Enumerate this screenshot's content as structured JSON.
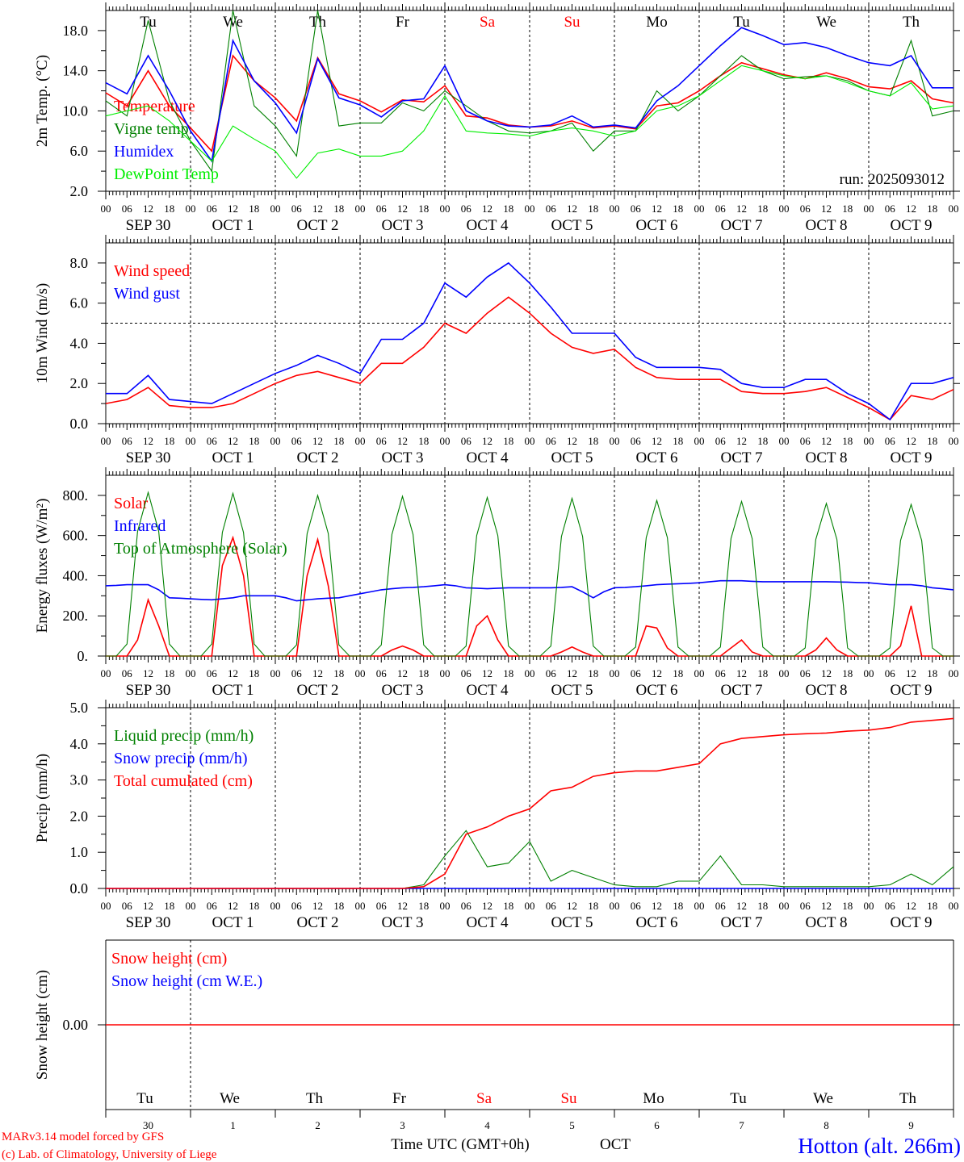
{
  "days": [
    "Tu",
    "We",
    "Th",
    "Fr",
    "Sa",
    "Su",
    "Mo",
    "Tu",
    "We",
    "Th"
  ],
  "weekend_days": [
    "Sa",
    "Su"
  ],
  "dates": [
    "SEP 30",
    "OCT  1",
    "OCT  2",
    "OCT  3",
    "OCT  4",
    "OCT  5",
    "OCT  6",
    "OCT  7",
    "OCT  8",
    "OCT  9"
  ],
  "day_numbers": [
    "30",
    "1",
    "2",
    "3",
    "4",
    "5",
    "6",
    "7",
    "8",
    "9"
  ],
  "hour_labels": [
    "00",
    "06",
    "12",
    "18"
  ],
  "run_label": "run: 2025093012",
  "footer": {
    "time_label": "Time UTC (GMT+0h)",
    "month_label": "OCT",
    "credit_1": "MARv3.14 model forced by GFS",
    "credit_2": "(c) Lab. of Climatology, University of Liege",
    "station": "Hotton (alt. 266m)"
  },
  "colors": {
    "red": "#ff0000",
    "blue": "#0000ff",
    "green": "#008000",
    "lightgreen": "#00ee00",
    "weekend": "#ff0000"
  },
  "chart_data": [
    {
      "type": "line",
      "ylabel": "2m Temp. (°C)",
      "ylim": [
        2,
        20
      ],
      "yticks": [
        "2.0",
        "6.0",
        "10.0",
        "14.0",
        "18.0"
      ],
      "ytick_values": [
        2,
        6,
        10,
        14,
        18
      ],
      "x_start": "2025-09-30 00 UTC",
      "step_hours": 6,
      "series": [
        {
          "name": "Temperature",
          "color": "#ff0000",
          "values": [
            11.8,
            10.5,
            14.0,
            10.5,
            8.3,
            6.0,
            15.5,
            13.0,
            11.3,
            9.0,
            15.3,
            11.7,
            11.0,
            9.9,
            11.1,
            10.9,
            12.5,
            9.5,
            9.3,
            8.6,
            8.4,
            8.5,
            9.0,
            8.3,
            8.5,
            8.2,
            10.5,
            10.8,
            12.0,
            13.5,
            14.8,
            14.2,
            13.6,
            13.2,
            13.8,
            13.2,
            12.4,
            12.2,
            13.0,
            11.2,
            10.8
          ]
        },
        {
          "name": "Vigne temp",
          "color": "#008000",
          "values": [
            11.0,
            9.5,
            19.0,
            11.0,
            7.0,
            4.0,
            20.0,
            10.5,
            8.5,
            5.5,
            20.0,
            8.5,
            8.8,
            8.8,
            10.8,
            10.0,
            12.0,
            10.5,
            9.0,
            8.0,
            7.8,
            8.0,
            8.8,
            6.0,
            8.0,
            8.0,
            12.0,
            10.0,
            11.5,
            13.5,
            15.5,
            14.0,
            13.2,
            13.4,
            13.5,
            13.0,
            12.0,
            11.5,
            17.0,
            9.5,
            10.0
          ]
        },
        {
          "name": "Humidex",
          "color": "#0000ff",
          "values": [
            12.8,
            11.7,
            15.5,
            12.0,
            8.0,
            5.0,
            17.0,
            13.0,
            10.8,
            7.8,
            15.2,
            11.3,
            10.6,
            9.4,
            11.0,
            11.2,
            14.5,
            10.0,
            9.0,
            8.5,
            8.4,
            8.6,
            9.5,
            8.4,
            8.6,
            8.3,
            11.0,
            12.5,
            14.5,
            16.5,
            18.3,
            17.5,
            16.6,
            16.8,
            16.3,
            15.5,
            14.8,
            14.5,
            15.5,
            12.3,
            12.3
          ]
        },
        {
          "name": "DewPoint Temp",
          "color": "#00ee00",
          "values": [
            9.5,
            10.0,
            10.5,
            9.0,
            7.0,
            5.0,
            8.5,
            7.2,
            6.0,
            3.3,
            5.8,
            6.2,
            5.5,
            5.5,
            6.0,
            8.0,
            11.5,
            8.0,
            7.8,
            7.7,
            7.5,
            8.0,
            8.3,
            8.0,
            7.5,
            8.0,
            10.0,
            10.5,
            11.5,
            13.0,
            14.5,
            14.0,
            13.5,
            13.2,
            13.5,
            12.8,
            12.0,
            11.5,
            12.8,
            10.2,
            10.5
          ]
        }
      ]
    },
    {
      "type": "line",
      "ylabel": "10m Wind (m/s)",
      "ylim": [
        0,
        9
      ],
      "yticks": [
        "0.0",
        "2.0",
        "4.0",
        "6.0",
        "8.0"
      ],
      "ytick_values": [
        0,
        2,
        4,
        6,
        8
      ],
      "reference_line": 5,
      "step_hours": 6,
      "series": [
        {
          "name": "Wind speed",
          "color": "#ff0000",
          "values": [
            1.0,
            1.2,
            1.8,
            0.9,
            0.8,
            0.8,
            1.0,
            1.5,
            2.0,
            2.4,
            2.6,
            2.3,
            2.0,
            3.0,
            3.0,
            3.8,
            5.0,
            4.5,
            5.5,
            6.3,
            5.5,
            4.5,
            3.8,
            3.5,
            3.7,
            2.8,
            2.3,
            2.2,
            2.2,
            2.2,
            1.6,
            1.5,
            1.5,
            1.6,
            1.8,
            1.3,
            0.8,
            0.2,
            1.4,
            1.2,
            1.7
          ]
        },
        {
          "name": "Wind gust",
          "color": "#0000ff",
          "values": [
            1.5,
            1.5,
            2.4,
            1.2,
            1.1,
            1.0,
            1.5,
            2.0,
            2.5,
            2.9,
            3.4,
            3.0,
            2.5,
            4.2,
            4.2,
            5.0,
            7.0,
            6.3,
            7.3,
            8.0,
            7.0,
            5.8,
            4.5,
            4.5,
            4.5,
            3.3,
            2.8,
            2.8,
            2.8,
            2.7,
            2.0,
            1.8,
            1.8,
            2.2,
            2.2,
            1.5,
            1.0,
            0.2,
            2.0,
            2.0,
            2.3
          ]
        }
      ]
    },
    {
      "type": "line",
      "ylabel": "Energy fluxes (W/m²)",
      "ylim": [
        0,
        900
      ],
      "yticks": [
        "0.",
        "200.",
        "400.",
        "600.",
        "800."
      ],
      "ytick_values": [
        0,
        200,
        400,
        600,
        800
      ],
      "step_hours": 3,
      "series": [
        {
          "name": "Solar",
          "color": "#ff0000",
          "values": [
            0,
            0,
            0,
            80,
            280,
            150,
            0,
            0,
            0,
            0,
            0,
            450,
            590,
            400,
            0,
            0,
            0,
            0,
            0,
            400,
            580,
            350,
            0,
            0,
            0,
            0,
            0,
            30,
            50,
            30,
            0,
            0,
            0,
            0,
            0,
            150,
            200,
            80,
            0,
            0,
            0,
            0,
            0,
            20,
            45,
            20,
            0,
            0,
            0,
            0,
            0,
            150,
            140,
            40,
            0,
            0,
            0,
            0,
            0,
            40,
            80,
            20,
            0,
            0,
            0,
            0,
            0,
            30,
            90,
            30,
            0,
            0,
            0,
            0,
            0,
            50,
            250,
            0,
            0,
            0,
            0
          ]
        },
        {
          "name": "Infrared",
          "color": "#0000ff",
          "values": [
            350,
            352,
            355,
            355,
            355,
            330,
            290,
            288,
            285,
            282,
            280,
            285,
            290,
            300,
            300,
            300,
            300,
            290,
            275,
            280,
            285,
            288,
            290,
            300,
            310,
            320,
            330,
            335,
            340,
            342,
            345,
            350,
            355,
            350,
            340,
            338,
            335,
            338,
            340,
            340,
            340,
            340,
            340,
            342,
            345,
            320,
            290,
            320,
            340,
            342,
            345,
            350,
            355,
            358,
            360,
            362,
            365,
            370,
            375,
            375,
            375,
            372,
            370,
            370,
            370,
            370,
            370,
            370,
            370,
            369,
            368,
            366,
            365,
            360,
            355,
            355,
            355,
            350,
            340,
            335,
            330
          ]
        },
        {
          "name": "Top of Atmosphere (Solar)",
          "color": "#008000",
          "values": [
            0,
            0,
            60,
            620,
            815,
            620,
            60,
            0,
            0,
            0,
            60,
            615,
            810,
            615,
            60,
            0,
            0,
            0,
            55,
            610,
            800,
            610,
            55,
            0,
            0,
            0,
            55,
            605,
            795,
            605,
            55,
            0,
            0,
            0,
            50,
            600,
            790,
            600,
            50,
            0,
            0,
            0,
            50,
            595,
            785,
            595,
            50,
            0,
            0,
            0,
            45,
            590,
            775,
            590,
            45,
            0,
            0,
            0,
            45,
            585,
            770,
            585,
            45,
            0,
            0,
            0,
            40,
            580,
            760,
            580,
            40,
            0,
            0,
            0,
            40,
            575,
            755,
            575,
            40,
            0,
            0
          ]
        }
      ]
    },
    {
      "type": "line",
      "ylabel": "Precip (mm/h)",
      "ylim": [
        0,
        5
      ],
      "yticks": [
        "0.0",
        "1.0",
        "2.0",
        "3.0",
        "4.0",
        "5.0"
      ],
      "ytick_values": [
        0,
        1,
        2,
        3,
        4,
        5
      ],
      "step_hours": 6,
      "series": [
        {
          "name": "Liquid precip (mm/h)",
          "color": "#008000",
          "values": [
            0,
            0,
            0,
            0,
            0,
            0,
            0,
            0,
            0,
            0,
            0,
            0,
            0,
            0,
            0,
            0.1,
            0.9,
            1.6,
            0.6,
            0.7,
            1.3,
            0.2,
            0.5,
            0.3,
            0.1,
            0.05,
            0.05,
            0.2,
            0.2,
            0.9,
            0.1,
            0.1,
            0.05,
            0.05,
            0.05,
            0.05,
            0.05,
            0.1,
            0.4,
            0.1,
            0.6
          ]
        },
        {
          "name": "Snow precip (mm/h)",
          "color": "#0000ff",
          "values": [
            0,
            0,
            0,
            0,
            0,
            0,
            0,
            0,
            0,
            0,
            0,
            0,
            0,
            0,
            0,
            0,
            0,
            0,
            0,
            0,
            0,
            0,
            0,
            0,
            0,
            0,
            0,
            0,
            0,
            0,
            0,
            0,
            0,
            0,
            0,
            0,
            0,
            0,
            0,
            0,
            0
          ]
        },
        {
          "name": "Total cumulated (cm)",
          "color": "#ff0000",
          "values": [
            0,
            0,
            0,
            0,
            0,
            0,
            0,
            0,
            0,
            0,
            0,
            0,
            0,
            0,
            0,
            0.05,
            0.4,
            1.5,
            1.7,
            2.0,
            2.2,
            2.7,
            2.8,
            3.1,
            3.2,
            3.25,
            3.25,
            3.35,
            3.45,
            4.0,
            4.15,
            4.2,
            4.25,
            4.28,
            4.3,
            4.35,
            4.38,
            4.45,
            4.6,
            4.65,
            4.7
          ]
        }
      ]
    },
    {
      "type": "line",
      "ylabel": "Snow height (cm)",
      "ylim": [
        -1,
        1
      ],
      "yticks": [
        "0.00"
      ],
      "ytick_values": [
        0
      ],
      "step_hours": 240,
      "series": [
        {
          "name": "Snow height (cm)",
          "color": "#ff0000",
          "values": [
            0,
            0
          ]
        },
        {
          "name": "Snow height (cm W.E.)",
          "color": "#0000ff",
          "values": []
        }
      ]
    }
  ]
}
